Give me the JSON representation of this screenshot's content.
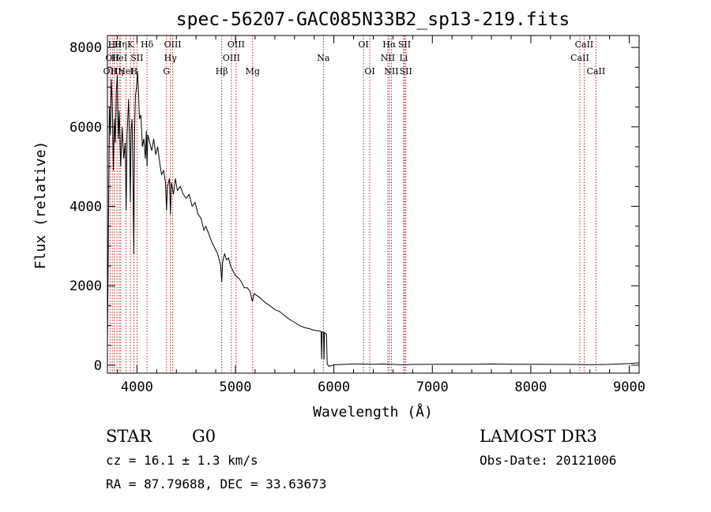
{
  "chart_data": {
    "type": "line",
    "title": "spec-56207-GAC085N33B2_sp13-219.fits",
    "xlabel": "Wavelength (Å)",
    "ylabel": "Flux (relative)",
    "xlim": [
      3700,
      9100
    ],
    "ylim": [
      -200,
      8300
    ],
    "x_ticks": [
      4000,
      5000,
      6000,
      7000,
      8000,
      9000
    ],
    "y_ticks": [
      0,
      2000,
      4000,
      6000,
      8000
    ],
    "grid": false,
    "spectrum": [
      [
        3700,
        500
      ],
      [
        3710,
        3200
      ],
      [
        3720,
        6500
      ],
      [
        3730,
        5800
      ],
      [
        3740,
        7200
      ],
      [
        3750,
        6600
      ],
      [
        3760,
        4900
      ],
      [
        3770,
        6200
      ],
      [
        3780,
        5600
      ],
      [
        3790,
        6900
      ],
      [
        3800,
        7300
      ],
      [
        3810,
        5700
      ],
      [
        3820,
        6400
      ],
      [
        3835,
        5000
      ],
      [
        3850,
        6000
      ],
      [
        3865,
        5200
      ],
      [
        3880,
        5600
      ],
      [
        3890,
        3900
      ],
      [
        3900,
        5800
      ],
      [
        3915,
        6700
      ],
      [
        3925,
        5500
      ],
      [
        3933,
        4100
      ],
      [
        3940,
        5900
      ],
      [
        3950,
        6200
      ],
      [
        3960,
        4600
      ],
      [
        3968,
        2800
      ],
      [
        3975,
        5800
      ],
      [
        3985,
        6800
      ],
      [
        3995,
        7000
      ],
      [
        4005,
        7400
      ],
      [
        4015,
        6900
      ],
      [
        4025,
        6200
      ],
      [
        4040,
        6300
      ],
      [
        4055,
        5500
      ],
      [
        4070,
        5700
      ],
      [
        4085,
        5200
      ],
      [
        4095,
        5900
      ],
      [
        4102,
        5000
      ],
      [
        4110,
        5800
      ],
      [
        4130,
        5600
      ],
      [
        4150,
        5400
      ],
      [
        4170,
        5700
      ],
      [
        4190,
        5300
      ],
      [
        4210,
        5500
      ],
      [
        4230,
        5100
      ],
      [
        4250,
        4800
      ],
      [
        4270,
        4900
      ],
      [
        4290,
        4600
      ],
      [
        4300,
        3900
      ],
      [
        4310,
        4500
      ],
      [
        4330,
        4700
      ],
      [
        4340,
        3800
      ],
      [
        4350,
        4600
      ],
      [
        4370,
        4300
      ],
      [
        4390,
        4700
      ],
      [
        4410,
        4400
      ],
      [
        4440,
        4500
      ],
      [
        4470,
        4300
      ],
      [
        4500,
        4200
      ],
      [
        4530,
        4300
      ],
      [
        4560,
        4000
      ],
      [
        4590,
        4100
      ],
      [
        4620,
        3800
      ],
      [
        4650,
        3700
      ],
      [
        4680,
        3400
      ],
      [
        4700,
        3500
      ],
      [
        4730,
        3300
      ],
      [
        4760,
        3100
      ],
      [
        4790,
        2950
      ],
      [
        4820,
        2800
      ],
      [
        4850,
        2500
      ],
      [
        4861,
        2100
      ],
      [
        4870,
        2600
      ],
      [
        4890,
        2800
      ],
      [
        4910,
        2650
      ],
      [
        4930,
        2700
      ],
      [
        4950,
        2500
      ],
      [
        4970,
        2400
      ],
      [
        5000,
        2250
      ],
      [
        5030,
        2200
      ],
      [
        5060,
        2100
      ],
      [
        5090,
        1950
      ],
      [
        5120,
        1950
      ],
      [
        5150,
        1850
      ],
      [
        5172,
        1600
      ],
      [
        5190,
        1800
      ],
      [
        5220,
        1750
      ],
      [
        5250,
        1700
      ],
      [
        5300,
        1580
      ],
      [
        5350,
        1500
      ],
      [
        5400,
        1400
      ],
      [
        5450,
        1350
      ],
      [
        5500,
        1250
      ],
      [
        5550,
        1150
      ],
      [
        5600,
        1080
      ],
      [
        5650,
        1000
      ],
      [
        5700,
        950
      ],
      [
        5750,
        920
      ],
      [
        5800,
        880
      ],
      [
        5850,
        860
      ],
      [
        5870,
        850
      ],
      [
        5875,
        150
      ],
      [
        5880,
        840
      ],
      [
        5895,
        830
      ],
      [
        5900,
        150
      ],
      [
        5905,
        820
      ],
      [
        5915,
        800
      ],
      [
        5925,
        780
      ],
      [
        5932,
        30
      ],
      [
        5950,
        -30
      ],
      [
        6000,
        10
      ],
      [
        6100,
        20
      ],
      [
        6200,
        30
      ],
      [
        6300,
        30
      ],
      [
        6400,
        25
      ],
      [
        6500,
        30
      ],
      [
        6600,
        20
      ],
      [
        6700,
        10
      ],
      [
        6800,
        20
      ],
      [
        6900,
        20
      ],
      [
        7000,
        25
      ],
      [
        7200,
        25
      ],
      [
        7400,
        25
      ],
      [
        7600,
        30
      ],
      [
        7800,
        25
      ],
      [
        8000,
        25
      ],
      [
        8200,
        20
      ],
      [
        8400,
        20
      ],
      [
        8600,
        15
      ],
      [
        8800,
        20
      ],
      [
        9000,
        40
      ],
      [
        9100,
        60
      ]
    ],
    "spectral_lines": [
      {
        "wl": 3727,
        "label": "OII",
        "row": 3
      },
      {
        "wl": 3750,
        "label": "OII",
        "row": 2
      },
      {
        "wl": 3770,
        "label": "Hθ",
        "row": 1
      },
      {
        "wl": 3797,
        "label": "Hη",
        "row": 3
      },
      {
        "wl": 3820,
        "label": "HeI",
        "row": 2
      },
      {
        "wl": 3835,
        "label": "Hη",
        "row": 1
      },
      {
        "wl": 3889,
        "label": "HeI",
        "row": 3
      },
      {
        "wl": 3934,
        "label": "K",
        "row": 1
      },
      {
        "wl": 3968,
        "label": "H",
        "row": 3
      },
      {
        "wl": 4000,
        "label": "SII",
        "row": 2
      },
      {
        "wl": 4102,
        "label": "Hδ",
        "row": 1
      },
      {
        "wl": 4300,
        "label": "G",
        "row": 3
      },
      {
        "wl": 4340,
        "label": "Hγ",
        "row": 2
      },
      {
        "wl": 4363,
        "label": "OIII",
        "row": 1
      },
      {
        "wl": 4861,
        "label": "Hβ",
        "row": 3
      },
      {
        "wl": 4959,
        "label": "OIII",
        "row": 2
      },
      {
        "wl": 5007,
        "label": "OIII",
        "row": 1
      },
      {
        "wl": 5175,
        "label": "Mg",
        "row": 3
      },
      {
        "wl": 5893,
        "label": "Na",
        "row": 2
      },
      {
        "wl": 6300,
        "label": "OI",
        "row": 1
      },
      {
        "wl": 6364,
        "label": "OI",
        "row": 3
      },
      {
        "wl": 6548,
        "label": "NII",
        "row": 2
      },
      {
        "wl": 6563,
        "label": "Hα",
        "row": 1
      },
      {
        "wl": 6584,
        "label": "NII",
        "row": 3
      },
      {
        "wl": 6708,
        "label": "Li",
        "row": 2
      },
      {
        "wl": 6717,
        "label": "SII",
        "row": 1
      },
      {
        "wl": 6731,
        "label": "SII",
        "row": 3
      },
      {
        "wl": 8498,
        "label": "CaII",
        "row": 2
      },
      {
        "wl": 8542,
        "label": "CaII",
        "row": 1
      },
      {
        "wl": 8662,
        "label": "CaII",
        "row": 3
      }
    ]
  },
  "info": {
    "class": "STAR",
    "subclass": "G0",
    "survey": "LAMOST DR3",
    "cz": "cz = 16.1 ± 1.3 km/s",
    "obs_date": "Obs-Date: 20121006",
    "coords": "RA =  87.79688, DEC =  33.63673"
  },
  "colors": {
    "spectrum": "#000000",
    "line_markers": "#b22222"
  }
}
